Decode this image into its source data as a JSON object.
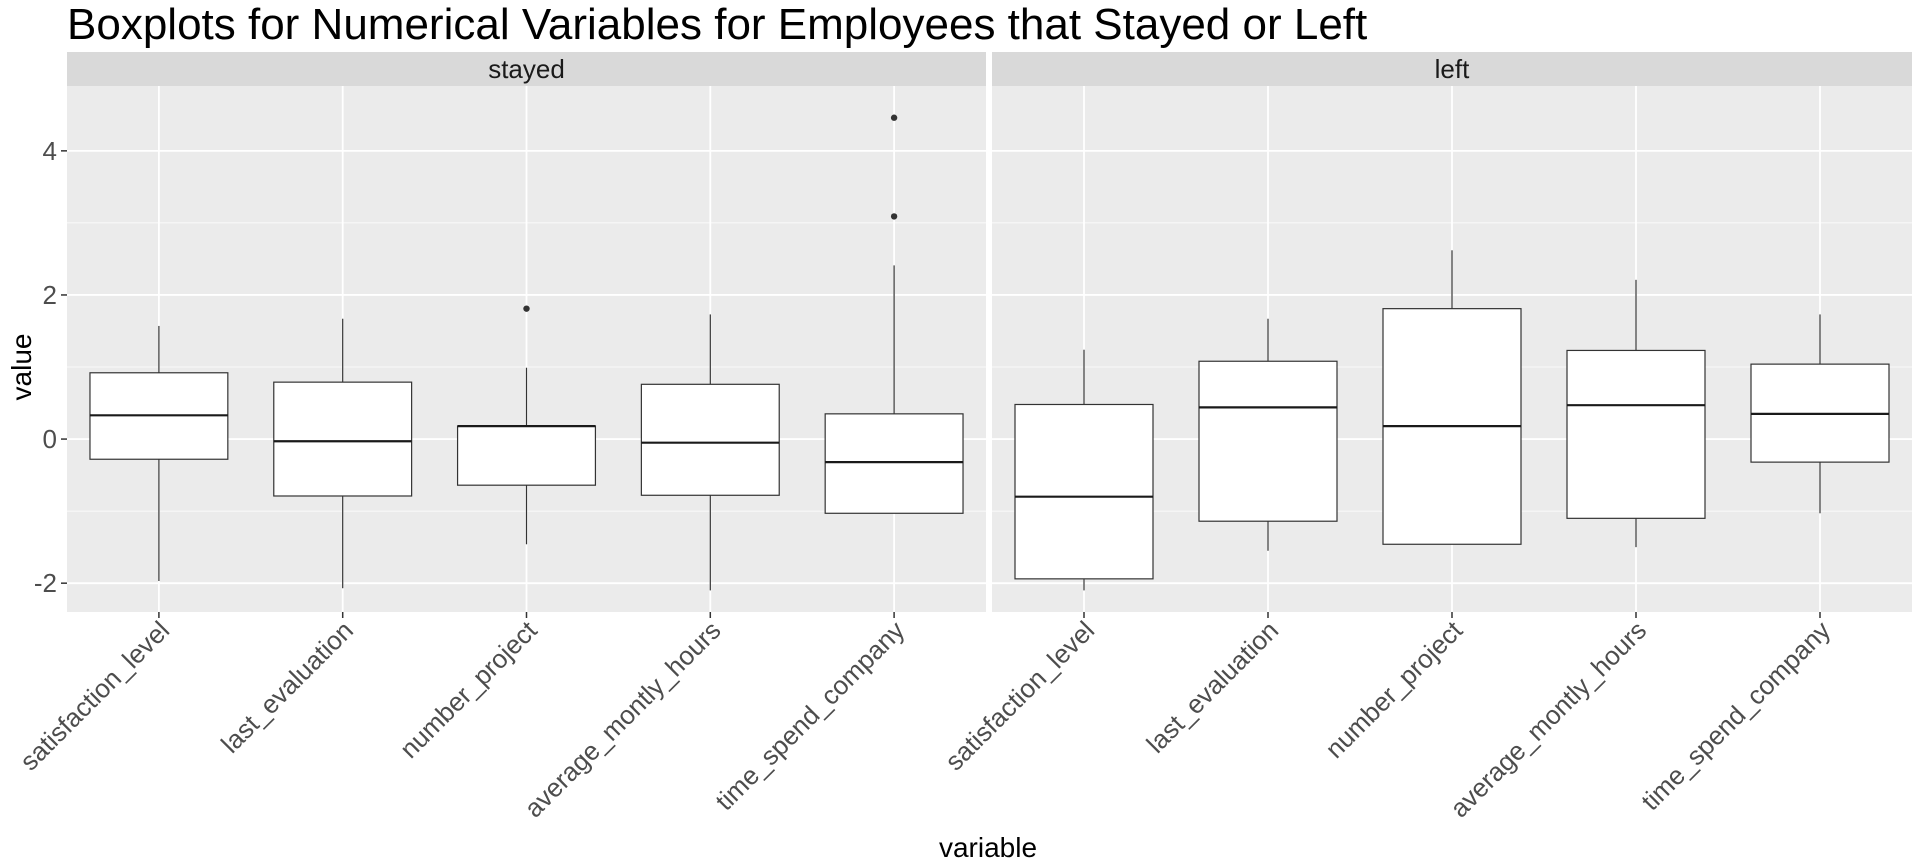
{
  "chart_data": {
    "type": "boxplot",
    "title": "Boxplots for Numerical Variables for Employees that Stayed or Left",
    "xlabel": "variable",
    "ylabel": "value",
    "ylim": [
      -2.4,
      4.9
    ],
    "yticks": [
      -2,
      0,
      2,
      4
    ],
    "grid": true,
    "categories": [
      "satisfaction_level",
      "last_evaluation",
      "number_project",
      "average_montly_hours",
      "time_spend_company"
    ],
    "panels": [
      {
        "name": "stayed",
        "boxes": [
          {
            "category": "satisfaction_level",
            "lower": -1.97,
            "q1": -0.28,
            "median": 0.33,
            "q3": 0.92,
            "upper": 1.57,
            "outliers": []
          },
          {
            "category": "last_evaluation",
            "lower": -2.07,
            "q1": -0.79,
            "median": -0.03,
            "q3": 0.79,
            "upper": 1.67,
            "outliers": []
          },
          {
            "category": "number_project",
            "lower": -1.46,
            "q1": -0.64,
            "median": 0.18,
            "q3": 0.18,
            "upper": 0.99,
            "outliers": [
              1.81
            ]
          },
          {
            "category": "average_montly_hours",
            "lower": -2.1,
            "q1": -0.78,
            "median": -0.05,
            "q3": 0.76,
            "upper": 1.73,
            "outliers": []
          },
          {
            "category": "time_spend_company",
            "lower": -1.03,
            "q1": -1.03,
            "median": -0.32,
            "q3": 0.35,
            "upper": 2.41,
            "outliers": [
              3.09,
              4.46
            ]
          }
        ]
      },
      {
        "name": "left",
        "boxes": [
          {
            "category": "satisfaction_level",
            "lower": -2.1,
            "q1": -1.94,
            "median": -0.8,
            "q3": 0.48,
            "upper": 1.24,
            "outliers": []
          },
          {
            "category": "last_evaluation",
            "lower": -1.55,
            "q1": -1.14,
            "median": 0.44,
            "q3": 1.08,
            "upper": 1.67,
            "outliers": []
          },
          {
            "category": "number_project",
            "lower": -1.46,
            "q1": -1.46,
            "median": 0.18,
            "q3": 1.81,
            "upper": 2.62,
            "outliers": []
          },
          {
            "category": "average_montly_hours",
            "lower": -1.5,
            "q1": -1.1,
            "median": 0.47,
            "q3": 1.23,
            "upper": 2.21,
            "outliers": []
          },
          {
            "category": "time_spend_company",
            "lower": -1.03,
            "q1": -0.32,
            "median": 0.35,
            "q3": 1.04,
            "upper": 1.73,
            "outliers": []
          }
        ]
      }
    ]
  }
}
